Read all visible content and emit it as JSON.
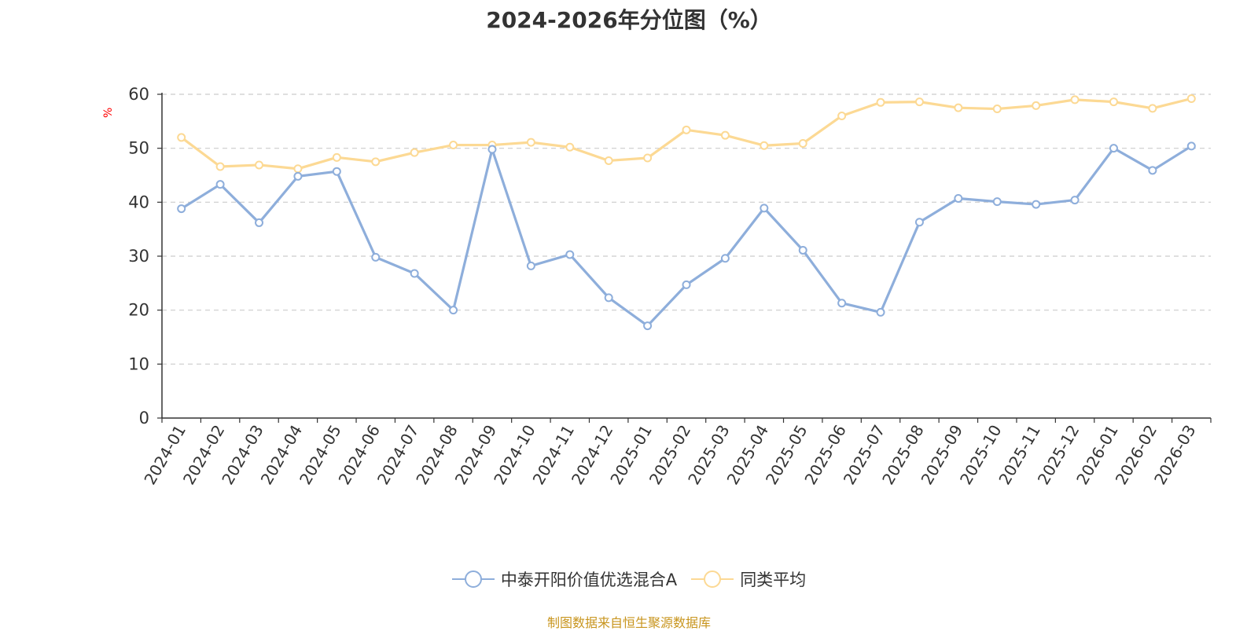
{
  "chart_data": {
    "type": "line",
    "title": "2024-2026年分位图（%）",
    "ylabel": "%",
    "xlabel": "",
    "ylim": [
      0,
      60
    ],
    "yticks": [
      0,
      10,
      20,
      30,
      40,
      50,
      60
    ],
    "grid": "horizontal dashed",
    "legend_position": "bottom-center",
    "categories": [
      "2024-01",
      "2024-02",
      "2024-03",
      "2024-04",
      "2024-05",
      "2024-06",
      "2024-07",
      "2024-08",
      "2024-09",
      "2024-10",
      "2024-11",
      "2024-12",
      "2025-01",
      "2025-02",
      "2025-03",
      "2025-04",
      "2025-05",
      "2025-06",
      "2025-07",
      "2025-08",
      "2025-09",
      "2025-10",
      "2025-11",
      "2025-12",
      "2026-01",
      "2026-02",
      "2026-03"
    ],
    "series": [
      {
        "name": "中泰开阳价值优选混合A",
        "color": "#8eaedb",
        "values": [
          38.8,
          43.3,
          36.2,
          44.8,
          45.7,
          29.8,
          26.8,
          20.0,
          49.8,
          28.2,
          30.3,
          22.3,
          17.1,
          24.7,
          29.6,
          38.9,
          31.1,
          21.3,
          19.6,
          36.3,
          40.7,
          40.1,
          39.6,
          40.4,
          50.0,
          45.9,
          50.4
        ]
      },
      {
        "name": "同类平均",
        "color": "#fcd994",
        "values": [
          52.0,
          46.6,
          46.9,
          46.2,
          48.3,
          47.5,
          49.2,
          50.6,
          50.6,
          51.1,
          50.2,
          47.7,
          48.2,
          53.4,
          52.4,
          50.5,
          50.9,
          56.0,
          58.5,
          58.6,
          57.5,
          57.3,
          57.9,
          59.0,
          58.6,
          57.4,
          59.2
        ]
      }
    ]
  },
  "source": "制图数据来自恒生聚源数据库"
}
